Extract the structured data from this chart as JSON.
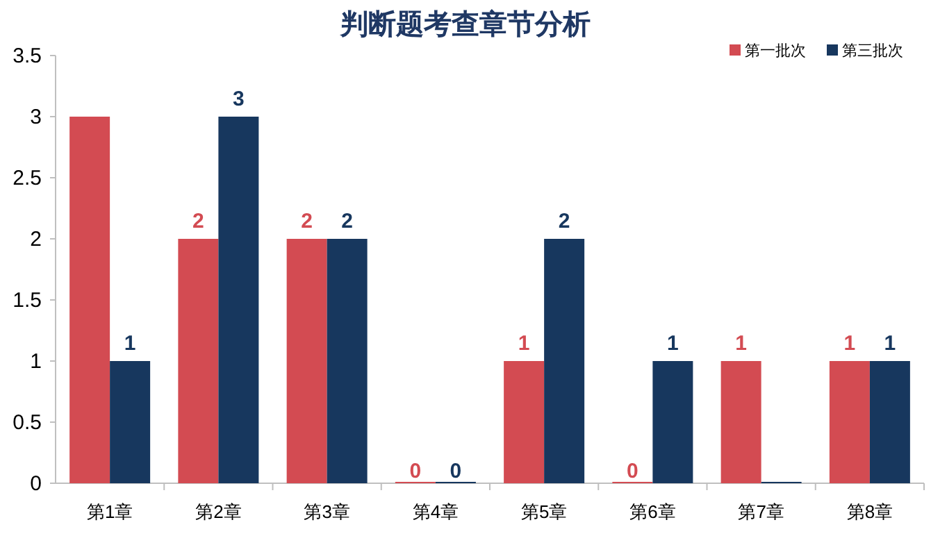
{
  "chart_data": {
    "type": "bar",
    "title": "判断题考查章节分析",
    "categories": [
      "第1章",
      "第2章",
      "第3章",
      "第4章",
      "第5章",
      "第6章",
      "第7章",
      "第8章"
    ],
    "series": [
      {
        "name": "第一批次",
        "color": "#d34b52",
        "values": [
          3,
          2,
          2,
          0,
          1,
          0,
          1,
          1
        ],
        "value_labels": [
          null,
          "2",
          "2",
          "0",
          "1",
          "0",
          "1",
          "1"
        ]
      },
      {
        "name": "第三批次",
        "color": "#17375e",
        "values": [
          1,
          3,
          2,
          0,
          2,
          1,
          0,
          1
        ],
        "value_labels": [
          "1",
          "3",
          "2",
          "0",
          "2",
          "1",
          null,
          "1"
        ]
      }
    ],
    "ylim": [
      0,
      3.5
    ],
    "yticks": [
      0,
      0.5,
      1,
      1.5,
      2,
      2.5,
      3,
      3.5
    ],
    "legend": "top right"
  }
}
